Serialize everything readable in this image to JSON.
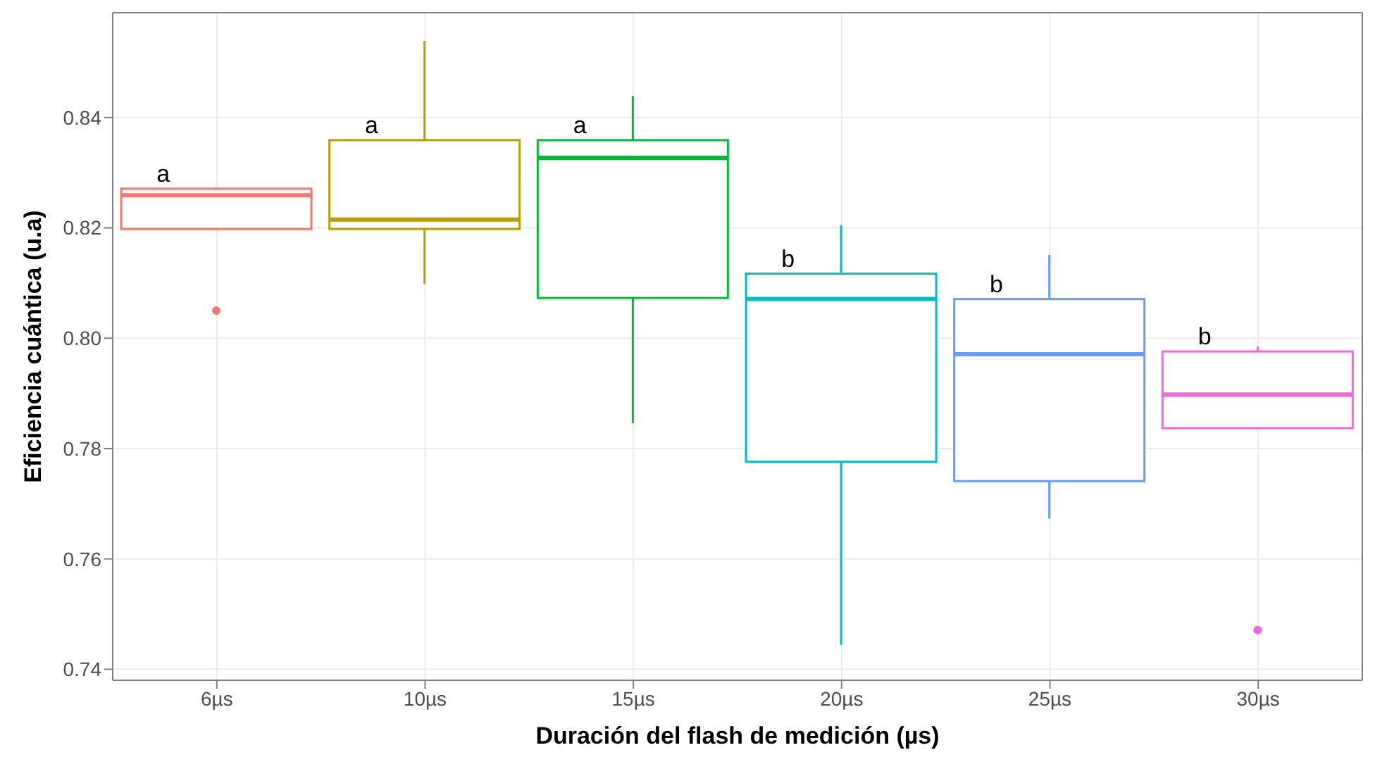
{
  "chart_data": {
    "type": "box",
    "xlabel": "Duración del flash de medición (µs)",
    "ylabel": "Eficiencia cuántica (u.a)",
    "categories": [
      "6µs",
      "10µs",
      "15µs",
      "20µs",
      "25µs",
      "30µs"
    ],
    "colors": [
      "#f8766d",
      "#b79f00",
      "#00ba38",
      "#00bfc4",
      "#619cff",
      "#f564e3"
    ],
    "boxes": [
      {
        "low": 0.8198,
        "q1": 0.8198,
        "median": 0.8259,
        "q3": 0.8271,
        "high": 0.8273,
        "outliers": [
          0.805
        ]
      },
      {
        "low": 0.8098,
        "q1": 0.8198,
        "median": 0.8215,
        "q3": 0.8359,
        "high": 0.8539
      },
      {
        "low": 0.7846,
        "q1": 0.8073,
        "median": 0.8327,
        "q3": 0.8359,
        "high": 0.8439
      },
      {
        "low": 0.7444,
        "q1": 0.7776,
        "median": 0.8071,
        "q3": 0.8117,
        "high": 0.8205
      },
      {
        "low": 0.7673,
        "q1": 0.7741,
        "median": 0.7971,
        "q3": 0.8071,
        "high": 0.8151
      },
      {
        "low": 0.7837,
        "q1": 0.7837,
        "median": 0.7898,
        "q3": 0.7976,
        "high": 0.7985,
        "outliers": [
          0.7471
        ]
      }
    ],
    "ylim": [
      0.738,
      0.859
    ],
    "yticks": [
      0.74,
      0.76,
      0.78,
      {
        "value": 0.8,
        "label": "0.80"
      },
      0.82,
      0.84
    ],
    "grid": true,
    "annotations": [
      {
        "text": "a",
        "x": "6µs",
        "y": 0.8271
      },
      {
        "text": "a",
        "x": "10µs",
        "y": 0.8359
      },
      {
        "text": "a",
        "x": "15µs",
        "y": 0.8359
      },
      {
        "text": "b",
        "x": "20µs",
        "y": 0.8117
      },
      {
        "text": "b",
        "x": "25µs",
        "y": 0.8071
      },
      {
        "text": "b",
        "x": "30µs",
        "y": 0.7976
      }
    ]
  }
}
